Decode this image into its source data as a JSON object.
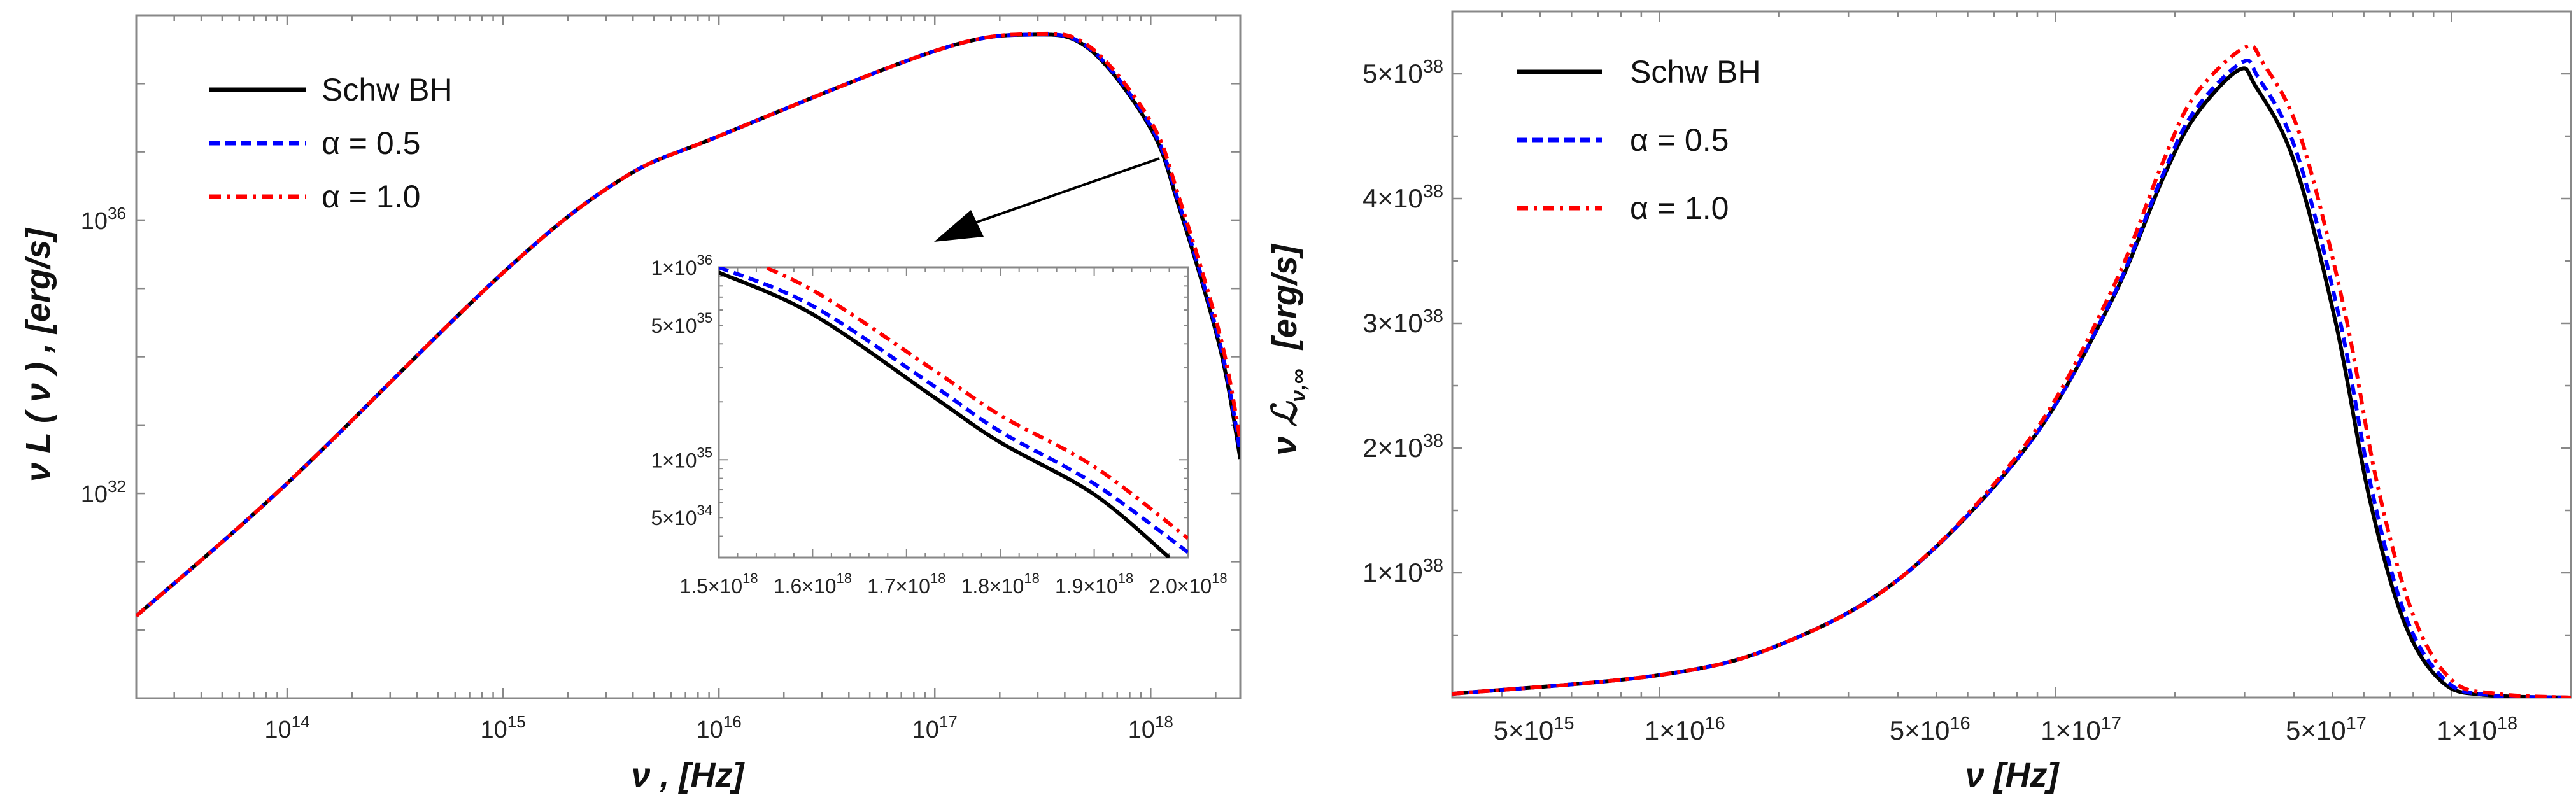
{
  "chart_data": [
    {
      "type": "line",
      "xlabel": "ν ,  [Hz]",
      "ylabel": "ν L ( ν ) ,  [erg/s]",
      "x_scale": "log",
      "y_scale": "log",
      "xlim": [
        20000000000000.0,
        2.6e+18
      ],
      "ylim": [
        1e+29,
        1e+39
      ],
      "grid": false,
      "legend_placement": "top-left",
      "x_ticks": [
        {
          "value": 100000000000000.0,
          "base": "10",
          "exp": "14"
        },
        {
          "value": 1000000000000000.0,
          "base": "10",
          "exp": "15"
        },
        {
          "value": 1e+16,
          "base": "10",
          "exp": "16"
        },
        {
          "value": 1e+17,
          "base": "10",
          "exp": "17"
        },
        {
          "value": 1e+18,
          "base": "10",
          "exp": "18"
        }
      ],
      "y_ticks": [
        {
          "value": 1e+36,
          "base": "10",
          "exp": "36"
        },
        {
          "value": 1e+32,
          "base": "10",
          "exp": "32"
        }
      ],
      "series": [
        {
          "name": "Schw BH",
          "color": "#000000",
          "style": "solid",
          "points": [
            [
              20000000000000.0,
              1.6e+30
            ],
            [
              100000000000000.0,
              1.4e+32
            ],
            [
              1000000000000000.0,
              1.7e+35
            ],
            [
              3500000000000000.0,
              3.9e+36
            ],
            [
              1e+16,
              1.7e+37
            ],
            [
              1e+17,
              3e+38
            ],
            [
              2.8e+17,
              5.2e+38
            ],
            [
              5.2e+17,
              3.2e+38
            ],
            [
              1e+18,
              2.2e+37
            ],
            [
              1.35e+18,
              1.6e+36
            ],
            [
              2.1e+18,
              1.3e+34
            ],
            [
              2.6e+18,
              3.2e+32
            ]
          ]
        },
        {
          "name": "α = 0.5",
          "color": "#0000ff",
          "style": "dashed",
          "points": [
            [
              20000000000000.0,
              1.6e+30
            ],
            [
              100000000000000.0,
              1.4e+32
            ],
            [
              1000000000000000.0,
              1.7e+35
            ],
            [
              3500000000000000.0,
              3.9e+36
            ],
            [
              1e+16,
              1.7e+37
            ],
            [
              1e+17,
              3e+38
            ],
            [
              2.8e+17,
              5.2e+38
            ],
            [
              5.2e+17,
              3.3e+38
            ],
            [
              1e+18,
              2.4e+37
            ],
            [
              1.35e+18,
              1.8e+36
            ],
            [
              2.1e+18,
              1.5e+34
            ],
            [
              2.6e+18,
              4e+32
            ]
          ]
        },
        {
          "name": "α = 1.0",
          "color": "#ff0000",
          "style": "dash-dot",
          "points": [
            [
              20000000000000.0,
              1.6e+30
            ],
            [
              100000000000000.0,
              1.4e+32
            ],
            [
              1000000000000000.0,
              1.7e+35
            ],
            [
              3500000000000000.0,
              3.9e+36
            ],
            [
              1e+16,
              1.7e+37
            ],
            [
              1e+17,
              3e+38
            ],
            [
              2.8e+17,
              5.3e+38
            ],
            [
              5.2e+17,
              3.5e+38
            ],
            [
              1e+18,
              2.8e+37
            ],
            [
              1.35e+18,
              2.2e+36
            ],
            [
              2.1e+18,
              2e+34
            ],
            [
              2.6e+18,
              6e+32
            ]
          ]
        }
      ],
      "annotation": "arrow pointing from the falling edge near 1.2×10^18 Hz to the inset"
    },
    {
      "type": "line",
      "role": "inset",
      "x_scale": "linear",
      "y_scale": "log",
      "xlim": [
        1.5e+18,
        2e+18
      ],
      "ylim": [
        3.1e+34,
        1e+36
      ],
      "x_ticks": [
        {
          "value": 1.5e+18,
          "base": "1.5×10",
          "exp": "18"
        },
        {
          "value": 1.6e+18,
          "base": "1.6×10",
          "exp": "18"
        },
        {
          "value": 1.7e+18,
          "base": "1.7×10",
          "exp": "18"
        },
        {
          "value": 1.8e+18,
          "base": "1.8×10",
          "exp": "18"
        },
        {
          "value": 1.9e+18,
          "base": "1.9×10",
          "exp": "18"
        },
        {
          "value": 2e+18,
          "base": "2.0×10",
          "exp": "18"
        }
      ],
      "y_ticks": [
        {
          "value": 1e+36,
          "base": "1×10",
          "exp": "36"
        },
        {
          "value": 5e+35,
          "base": "5×10",
          "exp": "35"
        },
        {
          "value": 1e+35,
          "base": "1×10",
          "exp": "35"
        },
        {
          "value": 5e+34,
          "base": "5×10",
          "exp": "34"
        }
      ],
      "series": [
        {
          "name": "Schw BH",
          "color": "#000000",
          "style": "solid",
          "points": [
            [
              1.5e+18,
              9.4e+35
            ],
            [
              1.6e+18,
              5.7e+35
            ],
            [
              1.73e+18,
              2.1e+35
            ],
            [
              1.8e+18,
              1.23e+35
            ],
            [
              1.9e+18,
              6.6e+34
            ],
            [
              1.98e+18,
              3.1e+34
            ]
          ]
        },
        {
          "name": "α = 0.5",
          "color": "#0000ff",
          "style": "dashed",
          "points": [
            [
              1.5e+18,
              1e+36
            ],
            [
              1.6e+18,
              6.3e+35
            ],
            [
              1.73e+18,
              2.4e+35
            ],
            [
              1.8e+18,
              1.4e+35
            ],
            [
              1.9e+18,
              7.5e+34
            ],
            [
              2e+18,
              3.3e+34
            ]
          ]
        },
        {
          "name": "α = 1.0",
          "color": "#ff0000",
          "style": "dash-dot",
          "points": [
            [
              1.5e+18,
              1.25e+36
            ],
            [
              1.6e+18,
              7.6e+35
            ],
            [
              1.73e+18,
              2.9e+35
            ],
            [
              1.8e+18,
              1.7e+35
            ],
            [
              1.9e+18,
              9.2e+34
            ],
            [
              2e+18,
              3.9e+34
            ]
          ]
        }
      ]
    },
    {
      "type": "line",
      "xlabel": "ν   [Hz]",
      "ylabel": "ν ℒ",
      "ylabel_sub": "ν,∞",
      "ylabel_unit": "[erg/s]",
      "x_scale": "log",
      "y_scale": "linear",
      "xlim": [
        3000000000000000.0,
        2e+18
      ],
      "ylim": [
        0,
        5.5e+38
      ],
      "grid": false,
      "legend_placement": "top-left",
      "x_ticks": [
        {
          "value": 5000000000000000.0,
          "base": "5×10",
          "exp": "15"
        },
        {
          "value": 1e+16,
          "base": "1×10",
          "exp": "16"
        },
        {
          "value": 5e+16,
          "base": "5×10",
          "exp": "16"
        },
        {
          "value": 1e+17,
          "base": "1×10",
          "exp": "17"
        },
        {
          "value": 5e+17,
          "base": "5×10",
          "exp": "17"
        },
        {
          "value": 1e+18,
          "base": "1×10",
          "exp": "18"
        }
      ],
      "y_ticks": [
        {
          "value": 1e+38,
          "base": "1×10",
          "exp": "38"
        },
        {
          "value": 2e+38,
          "base": "2×10",
          "exp": "38"
        },
        {
          "value": 3e+38,
          "base": "3×10",
          "exp": "38"
        },
        {
          "value": 4e+38,
          "base": "4×10",
          "exp": "38"
        },
        {
          "value": 5e+38,
          "base": "5×10",
          "exp": "38"
        }
      ],
      "series": [
        {
          "name": "Schw BH",
          "color": "#000000",
          "style": "solid",
          "points": [
            [
              3000000000000000.0,
              3e+36
            ],
            [
              1e+16,
              1.8e+37
            ],
            [
              2e+16,
              4.2e+37
            ],
            [
              4.1e+16,
              9.7e+37
            ],
            [
              8.5e+16,
              2.02e+38
            ],
            [
              1.38e+17,
              3.17e+38
            ],
            [
              1.86e+17,
              4.15e+38
            ],
            [
              2.24e+17,
              4.65e+38
            ],
            [
              2.9e+17,
              5.03e+38
            ],
            [
              3.2e+17,
              4.9e+38
            ],
            [
              4e+17,
              4.3e+38
            ],
            [
              5.1e+17,
              3e+38
            ],
            [
              6.2e+17,
              1.6e+38
            ],
            [
              7.6e+17,
              6e+37
            ],
            [
              9.5e+17,
              1.2e+37
            ],
            [
              1.23e+18,
              2e+36
            ],
            [
              2e+18,
              0.0
            ]
          ]
        },
        {
          "name": "α = 0.5",
          "color": "#0000ff",
          "style": "dashed",
          "points": [
            [
              3000000000000000.0,
              3e+36
            ],
            [
              1e+16,
              1.8e+37
            ],
            [
              2e+16,
              4.2e+37
            ],
            [
              4.1e+16,
              9.7e+37
            ],
            [
              8.5e+16,
              2.02e+38
            ],
            [
              1.38e+17,
              3.18e+38
            ],
            [
              1.86e+17,
              4.18e+38
            ],
            [
              2.24e+17,
              4.7e+38
            ],
            [
              2.95e+17,
              5.09e+38
            ],
            [
              3.25e+17,
              4.97e+38
            ],
            [
              4.05e+17,
              4.38e+38
            ],
            [
              5.2e+17,
              3.05e+38
            ],
            [
              6.3e+17,
              1.65e+38
            ],
            [
              7.7e+17,
              6.3e+37
            ],
            [
              9.7e+17,
              1.3e+37
            ],
            [
              1.25e+18,
              2e+36
            ],
            [
              2e+18,
              0.0
            ]
          ]
        },
        {
          "name": "α = 1.0",
          "color": "#ff0000",
          "style": "dash-dot",
          "points": [
            [
              3000000000000000.0,
              3e+36
            ],
            [
              1e+16,
              1.8e+37
            ],
            [
              2e+16,
              4.2e+37
            ],
            [
              4.1e+16,
              9.7e+37
            ],
            [
              8.5e+16,
              2.05e+38
            ],
            [
              1.38e+17,
              3.25e+38
            ],
            [
              1.86e+17,
              4.28e+38
            ],
            [
              2.24e+17,
              4.82e+38
            ],
            [
              3e+17,
              5.21e+38
            ],
            [
              3.35e+17,
              5.08e+38
            ],
            [
              4.15e+17,
              4.5e+38
            ],
            [
              5.35e+17,
              3.12e+38
            ],
            [
              6.5e+17,
              1.7e+38
            ],
            [
              8e+17,
              6.6e+37
            ],
            [
              1e+18,
              1.4e+37
            ],
            [
              1.3e+18,
              3e+36
            ],
            [
              2e+18,
              0.0
            ]
          ]
        }
      ]
    }
  ]
}
